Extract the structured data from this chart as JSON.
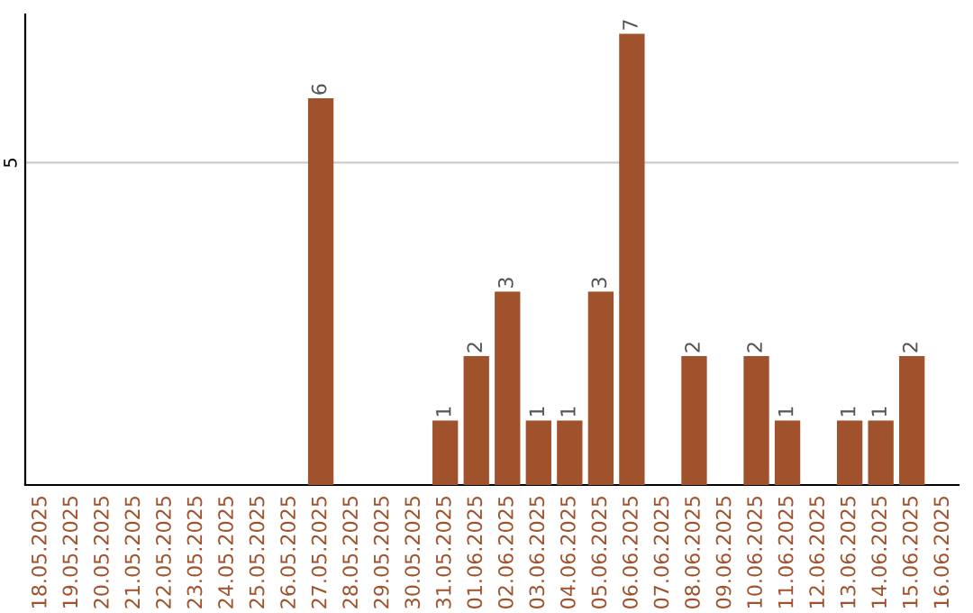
{
  "chart_data": {
    "type": "bar",
    "categories": [
      "18.05.2025",
      "19.05.2025",
      "20.05.2025",
      "21.05.2025",
      "22.05.2025",
      "23.05.2025",
      "24.05.2025",
      "25.05.2025",
      "26.05.2025",
      "27.05.2025",
      "28.05.2025",
      "29.05.2025",
      "30.05.2025",
      "31.05.2025",
      "01.06.2025",
      "02.06.2025",
      "03.06.2025",
      "04.06.2025",
      "05.06.2025",
      "06.06.2025",
      "07.06.2025",
      "08.06.2025",
      "09.06.2025",
      "10.06.2025",
      "11.06.2025",
      "12.06.2025",
      "13.06.2025",
      "14.06.2025",
      "15.06.2025",
      "16.06.2025"
    ],
    "values": [
      0,
      0,
      0,
      0,
      0,
      0,
      0,
      0,
      0,
      6,
      0,
      0,
      0,
      1,
      2,
      3,
      1,
      1,
      3,
      7,
      0,
      2,
      0,
      2,
      1,
      0,
      1,
      1,
      2,
      0
    ],
    "value_labels": [
      null,
      null,
      null,
      null,
      null,
      null,
      null,
      null,
      null,
      "6",
      null,
      null,
      null,
      "1",
      "2",
      "3",
      "1",
      "1",
      "3",
      "7",
      null,
      "2",
      null,
      "2",
      "1",
      null,
      "1",
      "1",
      "2",
      null
    ],
    "color": "#a0522d",
    "ylim": [
      0,
      7.3
    ],
    "yticks": [
      5
    ],
    "grid": "y",
    "legend": false
  }
}
